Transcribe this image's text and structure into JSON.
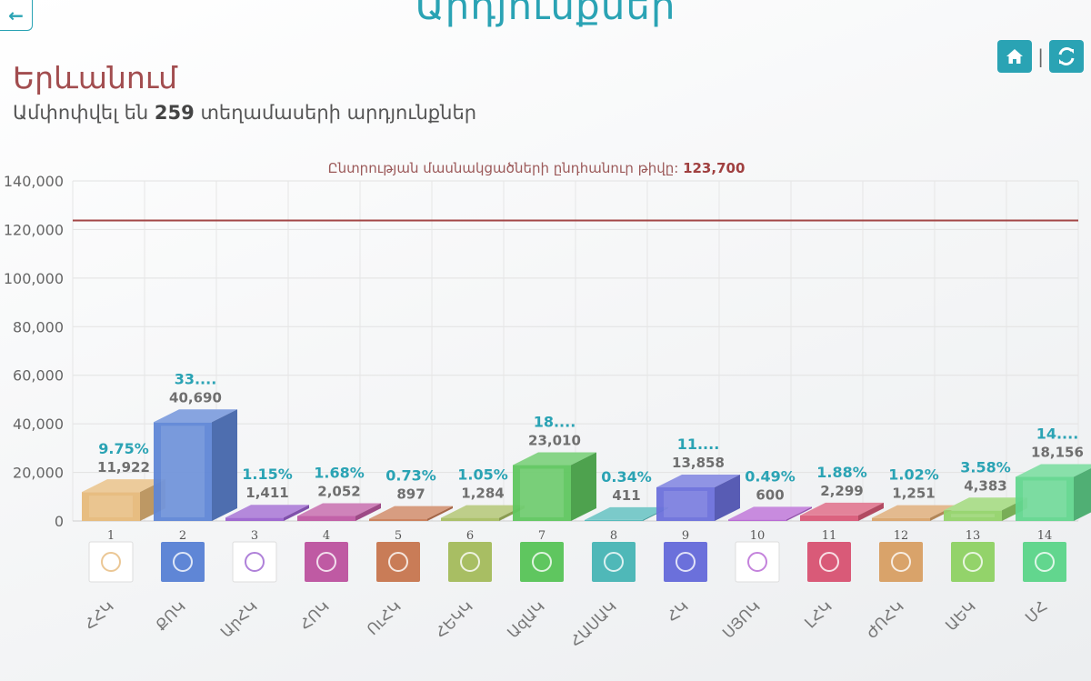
{
  "header": {
    "page_title": "Արդյունքներ",
    "region": "Երևանում",
    "subtitle_prefix": "Ամփոփվել են",
    "subtitle_count": "259",
    "subtitle_suffix": "տեղամասերի արդյունքներ"
  },
  "icons": {
    "back": "arrow-left-icon",
    "home": "home-icon",
    "refresh": "refresh-icon"
  },
  "colors": {
    "accent": "#2aa3b4",
    "region": "#a24d4f",
    "reference_line": "#a34646"
  },
  "chart_data": {
    "type": "bar",
    "title_text": "Ընտրության մասնակցածների ընդհանուր թիվը:",
    "title_value": "123,700",
    "reference_line": 123700,
    "ylim": [
      0,
      140000
    ],
    "yticks": [
      "0",
      "20,000",
      "40,000",
      "60,000",
      "80,000",
      "100,000",
      "120,000",
      "140,000"
    ],
    "grid": true,
    "categories": [
      "ՀՀԿ",
      "ՔՈԿ",
      "ԱրՀԿ",
      "ՀՈԿ",
      "ՈւՀԿ",
      "ՀԵԿԿ",
      "ԱզԱԿ",
      "ՀԱՍԱԿ",
      "ՀԿ",
      "ՍՅՈԿ",
      "ԼՀԿ",
      "ԺՈՀԿ",
      "ԱԵԿ",
      "ՄՀ"
    ],
    "numbers": [
      "1",
      "2",
      "3",
      "4",
      "5",
      "6",
      "7",
      "8",
      "9",
      "10",
      "11",
      "12",
      "13",
      "14"
    ],
    "values": [
      11922,
      40690,
      1411,
      2052,
      897,
      1284,
      23010,
      411,
      13858,
      600,
      2299,
      1251,
      4383,
      18156
    ],
    "value_labels": [
      "11,922",
      "40,690",
      "1,411",
      "2,052",
      "897",
      "1,284",
      "23,010",
      "411",
      "13,858",
      "600",
      "2,299",
      "1,251",
      "4,383",
      "18,156"
    ],
    "percent_labels": [
      "9.75%",
      "33....",
      "1.15%",
      "1.68%",
      "0.73%",
      "1.05%",
      "18....",
      "0.34%",
      "11....",
      "0.49%",
      "1.88%",
      "1.02%",
      "3.58%",
      "14...."
    ],
    "colors": [
      "#e6b97a",
      "#5f86d6",
      "#9b62cf",
      "#bf5aa3",
      "#c97c57",
      "#a8be63",
      "#5fc65f",
      "#4fb8b8",
      "#6b70db",
      "#b564d3",
      "#d95a78",
      "#d9a36a",
      "#93d36a",
      "#62d68e"
    ],
    "logos": [
      "crest-logo",
      "dark-square-logo",
      "orange-swirl-logo",
      "blue-text-logo",
      "dark-blue-logo",
      "blue-star-logo",
      "letter-logo",
      "blue-arch-logo",
      "gold-pattern-logo",
      "ur-logo",
      "purple-logo",
      "teal-logo",
      "red-logo",
      "photo-logo"
    ]
  }
}
